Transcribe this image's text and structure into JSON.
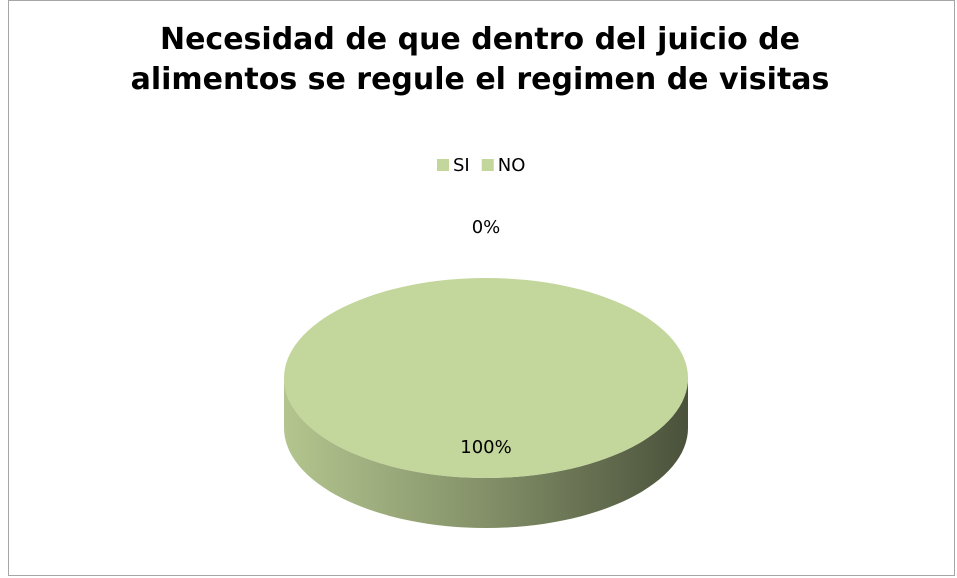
{
  "chart_data": {
    "type": "pie",
    "title": "Necesidad de que dentro del juicio de alimentos se regule el regimen de visitas",
    "categories": [
      "SI",
      "NO"
    ],
    "values": [
      100,
      0
    ],
    "value_labels": [
      "100%",
      "0%"
    ],
    "colors": [
      "#c3d69b",
      "#c3d69b"
    ],
    "legend": "top"
  }
}
